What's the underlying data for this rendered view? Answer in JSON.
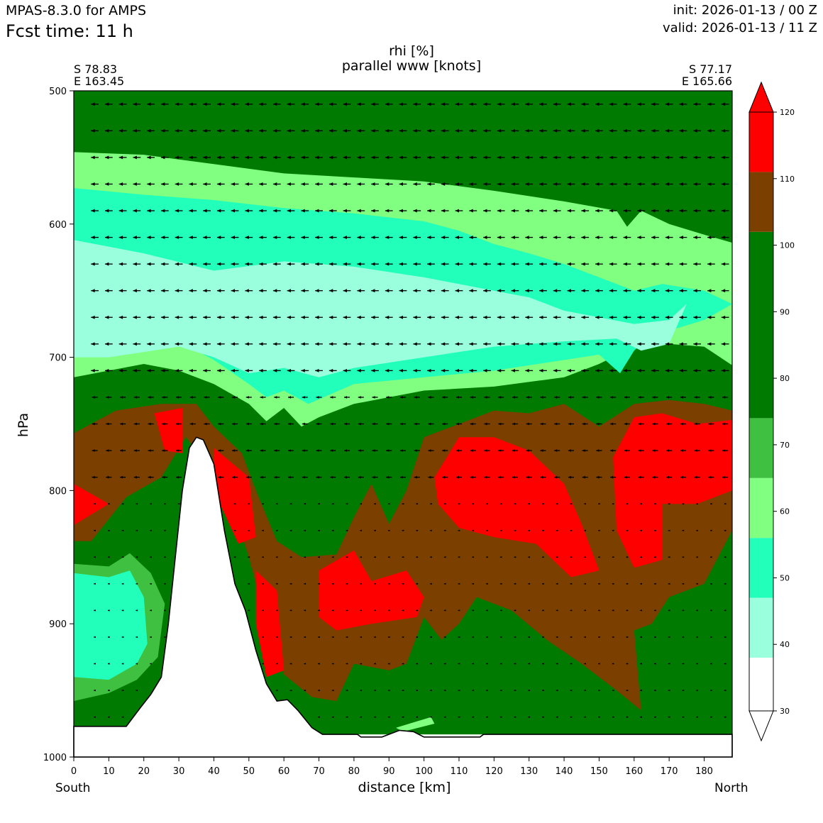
{
  "header": {
    "model": "MPAS-8.3.0 for AMPS",
    "fcst_time": "Fcst time:   11 h",
    "init": "init: 2026-01-13 / 00 Z",
    "valid": "valid: 2026-01-13 / 11 Z"
  },
  "start_point": {
    "lat": "S 78.83",
    "lon": "E 163.45"
  },
  "end_point": {
    "lat": "S 77.17",
    "lon": "E 165.66"
  },
  "direction": {
    "left": "South",
    "right": "North"
  },
  "colors": {
    "c30": "#ffffff",
    "c40": "#99ffdd",
    "c50": "#22ffbb",
    "c60": "#80ff80",
    "c70": "#40c040",
    "c80": "#007a00",
    "c100": "#7b3f00",
    "c110": "#ff0000",
    "terrain": "#ffffff",
    "arrow": "#000000"
  },
  "chart_data": {
    "type": "heatmap",
    "title": "rhi [%]",
    "subtitle": "parallel www [knots]",
    "xlabel": "distance [km]",
    "ylabel": "hPa",
    "xlim": [
      0,
      188
    ],
    "ylim": [
      1000,
      500
    ],
    "x_ticks": [
      0,
      10,
      20,
      30,
      40,
      50,
      60,
      70,
      80,
      90,
      100,
      110,
      120,
      130,
      140,
      150,
      160,
      170,
      180
    ],
    "y_ticks": [
      500,
      600,
      700,
      800,
      900,
      1000
    ],
    "colorbar": {
      "levels": [
        30,
        40,
        50,
        60,
        70,
        80,
        90,
        100,
        110,
        120
      ],
      "tick_labels": [
        "30",
        "40",
        "50",
        "60",
        "70",
        "80",
        "90",
        "100",
        "110",
        "120"
      ],
      "bins": [
        {
          "from": 30,
          "to": 38,
          "color": "#ffffff"
        },
        {
          "from": 38,
          "to": 47,
          "color": "#99ffdd"
        },
        {
          "from": 47,
          "to": 56,
          "color": "#22ffbb"
        },
        {
          "from": 56,
          "to": 65,
          "color": "#80ff80"
        },
        {
          "from": 65,
          "to": 74,
          "color": "#40c040"
        },
        {
          "from": 74,
          "to": 102,
          "color": "#007a00"
        },
        {
          "from": 102,
          "to": 111,
          "color": "#7b3f00"
        },
        {
          "from": 111,
          "to": 120,
          "color": "#ff0000"
        }
      ],
      "extend": "both"
    },
    "terrain_surface": [
      {
        "x": 0,
        "p": 977
      },
      {
        "x": 15,
        "p": 977
      },
      {
        "x": 19,
        "p": 963
      },
      {
        "x": 22,
        "p": 953
      },
      {
        "x": 25,
        "p": 940
      },
      {
        "x": 27,
        "p": 900
      },
      {
        "x": 29,
        "p": 850
      },
      {
        "x": 31,
        "p": 800
      },
      {
        "x": 33,
        "p": 768
      },
      {
        "x": 35,
        "p": 760
      },
      {
        "x": 37,
        "p": 762
      },
      {
        "x": 40,
        "p": 780
      },
      {
        "x": 43,
        "p": 830
      },
      {
        "x": 46,
        "p": 870
      },
      {
        "x": 49,
        "p": 890
      },
      {
        "x": 52,
        "p": 920
      },
      {
        "x": 55,
        "p": 945
      },
      {
        "x": 58,
        "p": 958
      },
      {
        "x": 61,
        "p": 957
      },
      {
        "x": 64,
        "p": 965
      },
      {
        "x": 68,
        "p": 978
      },
      {
        "x": 71,
        "p": 983
      },
      {
        "x": 81,
        "p": 983
      },
      {
        "x": 82,
        "p": 985
      },
      {
        "x": 88,
        "p": 985
      },
      {
        "x": 93,
        "p": 980
      },
      {
        "x": 97,
        "p": 981
      },
      {
        "x": 100,
        "p": 985
      },
      {
        "x": 116,
        "p": 985
      },
      {
        "x": 117,
        "p": 983
      },
      {
        "x": 188,
        "p": 983
      }
    ],
    "rhi_regions": [
      {
        "value": 90,
        "points": [
          [
            0,
            500
          ],
          [
            188,
            500
          ],
          [
            188,
            983
          ],
          [
            0,
            983
          ]
        ]
      },
      {
        "value": 62,
        "points": [
          [
            0,
            546
          ],
          [
            20,
            548
          ],
          [
            40,
            555
          ],
          [
            60,
            562
          ],
          [
            80,
            565
          ],
          [
            100,
            568
          ],
          [
            120,
            575
          ],
          [
            140,
            583
          ],
          [
            155,
            590
          ],
          [
            158,
            602
          ],
          [
            162,
            590
          ],
          [
            170,
            600
          ],
          [
            180,
            608
          ],
          [
            188,
            614
          ],
          [
            188,
            706
          ],
          [
            180,
            692
          ],
          [
            170,
            690
          ],
          [
            160,
            692
          ],
          [
            150,
            705
          ],
          [
            140,
            715
          ],
          [
            120,
            722
          ],
          [
            100,
            725
          ],
          [
            80,
            735
          ],
          [
            70,
            745
          ],
          [
            65,
            752
          ],
          [
            60,
            738
          ],
          [
            55,
            748
          ],
          [
            50,
            735
          ],
          [
            40,
            720
          ],
          [
            30,
            710
          ],
          [
            20,
            705
          ],
          [
            10,
            710
          ],
          [
            0,
            715
          ]
        ]
      },
      {
        "value": 52,
        "points": [
          [
            0,
            573
          ],
          [
            20,
            578
          ],
          [
            40,
            582
          ],
          [
            60,
            588
          ],
          [
            80,
            592
          ],
          [
            100,
            598
          ],
          [
            110,
            605
          ],
          [
            120,
            615
          ],
          [
            130,
            622
          ],
          [
            140,
            630
          ],
          [
            150,
            640
          ],
          [
            160,
            650
          ],
          [
            168,
            645
          ],
          [
            180,
            650
          ],
          [
            188,
            660
          ],
          [
            180,
            672
          ],
          [
            170,
            680
          ],
          [
            165,
            682
          ],
          [
            160,
            695
          ],
          [
            156,
            712
          ],
          [
            150,
            698
          ],
          [
            140,
            702
          ],
          [
            120,
            710
          ],
          [
            100,
            715
          ],
          [
            80,
            720
          ],
          [
            67,
            735
          ],
          [
            60,
            725
          ],
          [
            55,
            730
          ],
          [
            50,
            720
          ],
          [
            40,
            702
          ],
          [
            30,
            688
          ],
          [
            20,
            688
          ],
          [
            10,
            690
          ],
          [
            0,
            692
          ]
        ]
      },
      {
        "value": 42,
        "points": [
          [
            0,
            612
          ],
          [
            20,
            622
          ],
          [
            40,
            635
          ],
          [
            60,
            628
          ],
          [
            80,
            632
          ],
          [
            100,
            640
          ],
          [
            120,
            650
          ],
          [
            130,
            655
          ],
          [
            140,
            665
          ],
          [
            150,
            670
          ],
          [
            160,
            675
          ],
          [
            170,
            672
          ],
          [
            175,
            660
          ],
          [
            170,
            690
          ],
          [
            162,
            695
          ],
          [
            155,
            686
          ],
          [
            140,
            688
          ],
          [
            120,
            692
          ],
          [
            100,
            700
          ],
          [
            80,
            708
          ],
          [
            70,
            715
          ],
          [
            60,
            708
          ],
          [
            50,
            712
          ],
          [
            40,
            700
          ],
          [
            30,
            692
          ],
          [
            20,
            696
          ],
          [
            10,
            700
          ],
          [
            0,
            700
          ]
        ]
      },
      {
        "value": 105,
        "points": [
          [
            0,
            757
          ],
          [
            12,
            740
          ],
          [
            25,
            735
          ],
          [
            35,
            735
          ],
          [
            40,
            752
          ],
          [
            48,
            772
          ],
          [
            52,
            800
          ],
          [
            58,
            838
          ],
          [
            65,
            850
          ],
          [
            75,
            848
          ],
          [
            80,
            820
          ],
          [
            85,
            795
          ],
          [
            90,
            825
          ],
          [
            95,
            800
          ],
          [
            100,
            760
          ],
          [
            110,
            750
          ],
          [
            120,
            740
          ],
          [
            130,
            742
          ],
          [
            140,
            735
          ],
          [
            150,
            752
          ],
          [
            160,
            735
          ],
          [
            170,
            732
          ],
          [
            180,
            735
          ],
          [
            188,
            740
          ],
          [
            188,
            830
          ],
          [
            180,
            870
          ],
          [
            170,
            880
          ],
          [
            165,
            900
          ],
          [
            160,
            905
          ],
          [
            162,
            965
          ],
          [
            155,
            950
          ],
          [
            145,
            930
          ],
          [
            135,
            912
          ],
          [
            125,
            890
          ],
          [
            115,
            880
          ],
          [
            110,
            900
          ],
          [
            105,
            912
          ],
          [
            100,
            895
          ],
          [
            95,
            930
          ],
          [
            90,
            935
          ],
          [
            80,
            930
          ],
          [
            75,
            958
          ],
          [
            68,
            955
          ],
          [
            60,
            938
          ],
          [
            55,
            900
          ],
          [
            50,
            850
          ],
          [
            45,
            810
          ],
          [
            38,
            780
          ],
          [
            32,
            760
          ],
          [
            25,
            790
          ],
          [
            15,
            805
          ],
          [
            5,
            838
          ],
          [
            0,
            838
          ]
        ]
      },
      {
        "value": 70,
        "points": [
          [
            0,
            855
          ],
          [
            10,
            857
          ],
          [
            16,
            847
          ],
          [
            22,
            862
          ],
          [
            26,
            885
          ],
          [
            24,
            925
          ],
          [
            18,
            942
          ],
          [
            10,
            952
          ],
          [
            0,
            958
          ]
        ]
      },
      {
        "value": 52,
        "points": [
          [
            0,
            862
          ],
          [
            10,
            865
          ],
          [
            16,
            860
          ],
          [
            20,
            880
          ],
          [
            21,
            915
          ],
          [
            18,
            930
          ],
          [
            10,
            942
          ],
          [
            0,
            940
          ]
        ]
      },
      {
        "value": 62,
        "points": [
          [
            92,
            978
          ],
          [
            102,
            970
          ],
          [
            103,
            975
          ],
          [
            94,
            981
          ]
        ]
      },
      {
        "value": 115,
        "points": [
          [
            23,
            742
          ],
          [
            31,
            738
          ],
          [
            31,
            772
          ],
          [
            26,
            770
          ]
        ]
      },
      {
        "value": 115,
        "points": [
          [
            0,
            795
          ],
          [
            10,
            810
          ],
          [
            0,
            826
          ]
        ]
      },
      {
        "value": 115,
        "points": [
          [
            40,
            768
          ],
          [
            50,
            790
          ],
          [
            52,
            835
          ],
          [
            47,
            840
          ],
          [
            40,
            800
          ]
        ]
      },
      {
        "value": 115,
        "points": [
          [
            52,
            860
          ],
          [
            58,
            875
          ],
          [
            60,
            935
          ],
          [
            55,
            940
          ],
          [
            52,
            900
          ]
        ]
      },
      {
        "value": 115,
        "points": [
          [
            70,
            860
          ],
          [
            80,
            845
          ],
          [
            85,
            868
          ],
          [
            95,
            860
          ],
          [
            100,
            880
          ],
          [
            98,
            895
          ],
          [
            85,
            900
          ],
          [
            75,
            905
          ],
          [
            70,
            895
          ]
        ]
      },
      {
        "value": 115,
        "points": [
          [
            103,
            790
          ],
          [
            110,
            760
          ],
          [
            120,
            760
          ],
          [
            130,
            770
          ],
          [
            140,
            795
          ],
          [
            145,
            825
          ],
          [
            150,
            860
          ],
          [
            142,
            865
          ],
          [
            132,
            840
          ],
          [
            120,
            835
          ],
          [
            110,
            828
          ],
          [
            104,
            810
          ]
        ]
      },
      {
        "value": 115,
        "points": [
          [
            154,
            775
          ],
          [
            160,
            745
          ],
          [
            168,
            742
          ],
          [
            178,
            750
          ],
          [
            188,
            747
          ],
          [
            188,
            800
          ],
          [
            178,
            810
          ],
          [
            168,
            810
          ],
          [
            168,
            852
          ],
          [
            160,
            858
          ],
          [
            155,
            830
          ]
        ]
      }
    ],
    "wind_vectors": {
      "description_levels_hPa": [
        510,
        530,
        550,
        570,
        590,
        610,
        630,
        650,
        670,
        690,
        710,
        730,
        750,
        770,
        790,
        810,
        830,
        850,
        870,
        890,
        910,
        930,
        950,
        970
      ],
      "x_spacing_km": 4,
      "regions": [
        {
          "p_min": 500,
          "p_max": 720,
          "u_knots": -12,
          "v_knots": 1
        },
        {
          "p_min": 720,
          "p_max": 800,
          "u_knots": -9,
          "v_knots": 0.5
        },
        {
          "p_min": 800,
          "p_max": 983,
          "u_knots": -3,
          "v_knots": 0.5
        }
      ]
    }
  }
}
